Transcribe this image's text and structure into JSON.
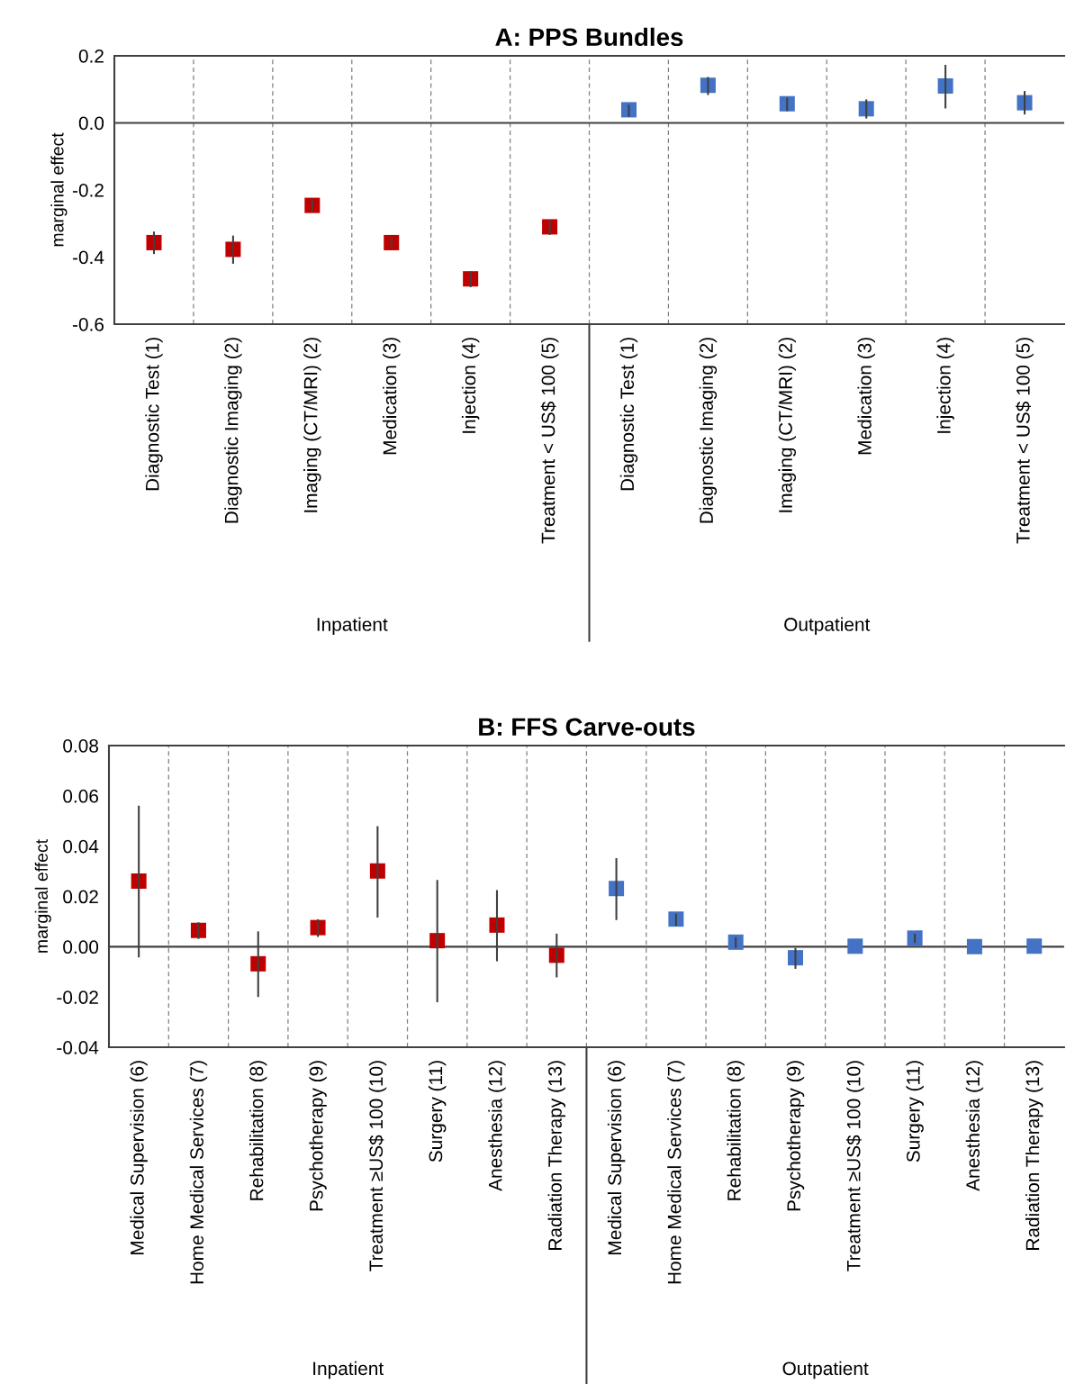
{
  "chart_data": [
    {
      "type": "scatter",
      "title": "A: PPS Bundles",
      "ylabel": "marginal effect",
      "categories": [
        "Diagnostic Test (1)",
        "Diagnostic Imaging (2)",
        "Imaging (CT/MRI) (2)",
        "Medication (3)",
        "Injection (4)",
        "Treatment < US$ 100 (5)",
        "Diagnostic Test (1)",
        "Diagnostic Imaging (2)",
        "Imaging (CT/MRI) (2)",
        "Medication (3)",
        "Injection (4)",
        "Treatment < US$ 100 (5)"
      ],
      "series": [
        {
          "color": "#c00000",
          "values": [
            -0.357,
            -0.377,
            -0.246,
            -0.357,
            -0.465,
            -0.31,
            null,
            null,
            null,
            null,
            null,
            null
          ],
          "errors": [
            [
              -0.391,
              -0.324
            ],
            [
              -0.42,
              -0.336
            ],
            [
              -0.264,
              -0.228
            ],
            [
              -0.372,
              -0.342
            ],
            [
              -0.49,
              -0.443
            ],
            [
              -0.334,
              -0.291
            ],
            null,
            null,
            null,
            null,
            null,
            null
          ]
        },
        {
          "color": "#4472c4",
          "values": [
            null,
            null,
            null,
            null,
            null,
            null,
            0.039,
            0.112,
            0.057,
            0.042,
            0.11,
            0.06
          ],
          "errors": [
            null,
            null,
            null,
            null,
            null,
            null,
            [
              0.018,
              0.054
            ],
            [
              0.083,
              0.137
            ],
            [
              0.035,
              0.075
            ],
            [
              0.013,
              0.07
            ],
            [
              0.043,
              0.173
            ],
            [
              0.025,
              0.095
            ]
          ]
        }
      ],
      "annotations": [
        "Inpatient",
        "Outpatient"
      ],
      "ylim": [
        -0.6,
        0.2
      ],
      "yticks": [
        {
          "value": -0.6,
          "label": "-0.6"
        },
        {
          "value": -0.4,
          "label": "-0.4"
        },
        {
          "value": -0.2,
          "label": "-0.2"
        },
        {
          "value": 0,
          "label": "0.0"
        },
        {
          "value": 0.2,
          "label": "0.2"
        }
      ],
      "ref_lines": [
        {
          "axis": "y",
          "value": 0,
          "color": "#404040",
          "line_style": "solid"
        }
      ],
      "grid": "x",
      "legend": false
    },
    {
      "type": "scatter",
      "title": "B: FFS Carve-outs",
      "ylabel": "marginal effect",
      "categories": [
        "Medical Supervision (6)",
        "Home Medical Services (7)",
        "Rehabilitation (8)",
        "Psychotherapy (9)",
        "Treatment ≥US$ 100 (10)",
        "Surgery (11)",
        "Anesthesia (12)",
        "Radiation Therapy (13)",
        "Medical Supervision (6)",
        "Home Medical Services (7)",
        "Rehabilitation (8)",
        "Psychotherapy (9)",
        "Treatment ≥US$ 100 (10)",
        "Surgery (11)",
        "Anesthesia (12)",
        "Radiation Therapy (13)"
      ],
      "series": [
        {
          "color": "#c00000",
          "values": [
            0.0261,
            0.0065,
            -0.0068,
            0.0076,
            0.0301,
            0.0024,
            0.0086,
            -0.0034,
            null,
            null,
            null,
            null,
            null,
            null,
            null,
            null
          ],
          "errors": [
            [
              -0.0043,
              0.0561
            ],
            [
              0.0031,
              0.0097
            ],
            [
              -0.02,
              0.0061
            ],
            [
              0.0039,
              0.0109
            ],
            [
              0.0116,
              0.0479
            ],
            [
              -0.0221,
              0.0265
            ],
            [
              -0.0058,
              0.0225
            ],
            [
              -0.0122,
              0.0052
            ],
            null,
            null,
            null,
            null,
            null,
            null,
            null,
            null
          ]
        },
        {
          "color": "#4472c4",
          "values": [
            null,
            null,
            null,
            null,
            null,
            null,
            null,
            null,
            0.0231,
            0.011,
            0.0018,
            -0.0044,
            0.0002,
            0.0034,
            0.0,
            0.0002
          ],
          "errors": [
            null,
            null,
            null,
            null,
            null,
            null,
            null,
            null,
            [
              0.0106,
              0.0352
            ],
            [
              0.0083,
              0.0131
            ],
            [
              -0.0005,
              0.0038
            ],
            [
              -0.0088,
              -0.0005
            ],
            null,
            [
              0.0015,
              0.0051
            ],
            null,
            null
          ]
        }
      ],
      "annotations": [
        "Inpatient",
        "Outpatient"
      ],
      "ylim": [
        -0.04,
        0.08
      ],
      "yticks": [
        {
          "value": -0.04,
          "label": "-0.04"
        },
        {
          "value": -0.02,
          "label": "-0.02"
        },
        {
          "value": 0,
          "label": "0.00"
        },
        {
          "value": 0.02,
          "label": "0.02"
        },
        {
          "value": 0.04,
          "label": "0.04"
        },
        {
          "value": 0.06,
          "label": "0.06"
        },
        {
          "value": 0.08,
          "label": "0.08"
        }
      ],
      "ref_lines": [
        {
          "axis": "y",
          "value": 0,
          "color": "#404040",
          "line_style": "solid"
        }
      ],
      "grid": "x",
      "legend": false
    }
  ]
}
